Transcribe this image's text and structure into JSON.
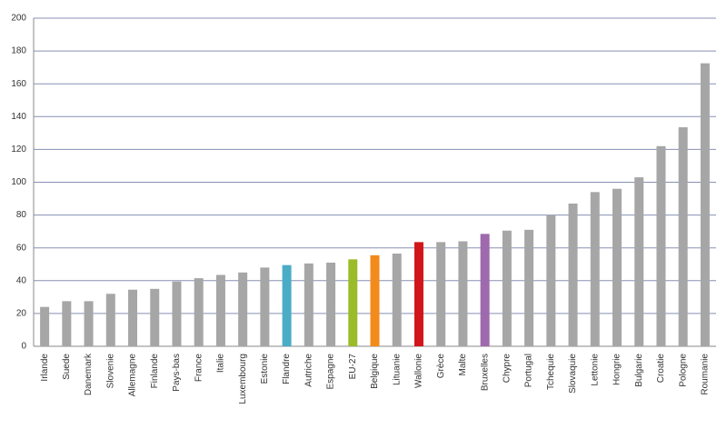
{
  "chart_data": {
    "type": "bar",
    "categories": [
      "Irlande",
      "Suede",
      "Danemark",
      "Slovenie",
      "Allemagne",
      "Finlande",
      "Pays-bas",
      "France",
      "Italie",
      "Luxembourg",
      "Estonie",
      "Flandre",
      "Autriche",
      "Espagne",
      "EU-27",
      "Belgique",
      "Lituanie",
      "Wallonie",
      "Grèce",
      "Malte",
      "Bruxelles",
      "Chypre",
      "Portugal",
      "Tchequie",
      "Slovaquie",
      "Lettonie",
      "Hongrie",
      "Bulgarie",
      "Croatie",
      "Pologne",
      "Roumanie"
    ],
    "values": [
      24,
      27.5,
      27.5,
      32,
      34.5,
      35,
      39.5,
      41.5,
      43.5,
      45,
      48,
      49.5,
      50.5,
      51,
      53,
      55.5,
      56.5,
      63.5,
      63.5,
      64,
      68.5,
      70.5,
      71,
      80,
      87,
      94,
      96,
      103,
      122,
      133.5,
      172.5
    ],
    "colors": [
      "#a6a6a6",
      "#a6a6a6",
      "#a6a6a6",
      "#a6a6a6",
      "#a6a6a6",
      "#a6a6a6",
      "#a6a6a6",
      "#a6a6a6",
      "#a6a6a6",
      "#a6a6a6",
      "#a6a6a6",
      "#4bacc6",
      "#a6a6a6",
      "#a6a6a6",
      "#9bbb29",
      "#f38b1c",
      "#a6a6a6",
      "#d0161b",
      "#a6a6a6",
      "#a6a6a6",
      "#9e69ad",
      "#a6a6a6",
      "#a6a6a6",
      "#a6a6a6",
      "#a6a6a6",
      "#a6a6a6",
      "#a6a6a6",
      "#a6a6a6",
      "#a6a6a6",
      "#a6a6a6",
      "#a6a6a6"
    ],
    "ylim": [
      0,
      200
    ],
    "yticks": [
      0,
      20,
      40,
      60,
      80,
      100,
      120,
      140,
      160,
      180,
      200
    ],
    "grid": true
  }
}
